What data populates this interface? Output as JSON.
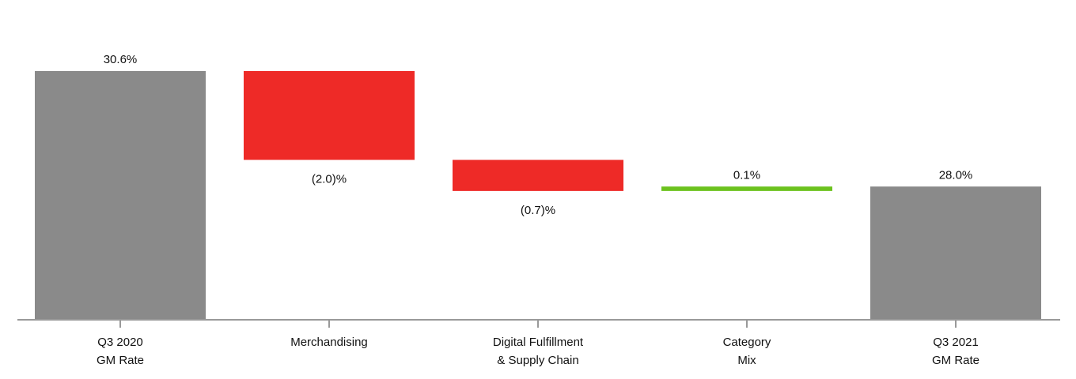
{
  "chart_data": {
    "type": "bar",
    "subtype": "waterfall",
    "categories": [
      [
        "Q3 2020",
        "GM Rate"
      ],
      [
        "Merchandising"
      ],
      [
        "Digital Fulfillment",
        "& Supply Chain"
      ],
      [
        "Category",
        "Mix"
      ],
      [
        "Q3 2021",
        "GM Rate"
      ]
    ],
    "values": [
      30.6,
      -2.0,
      -0.7,
      0.1,
      28.0
    ],
    "kinds": [
      "total",
      "delta",
      "delta",
      "delta",
      "total"
    ],
    "value_labels": [
      "30.6%",
      "(2.0)%",
      "(0.7)%",
      "0.1%",
      "28.0%"
    ],
    "title": "",
    "xlabel": "",
    "ylabel": "",
    "grid": false,
    "legend": "none",
    "colors": {
      "total": "#8a8a8a",
      "decrease": "#ee2a27",
      "increase": "#6cc21e",
      "axis": "#999999"
    }
  }
}
